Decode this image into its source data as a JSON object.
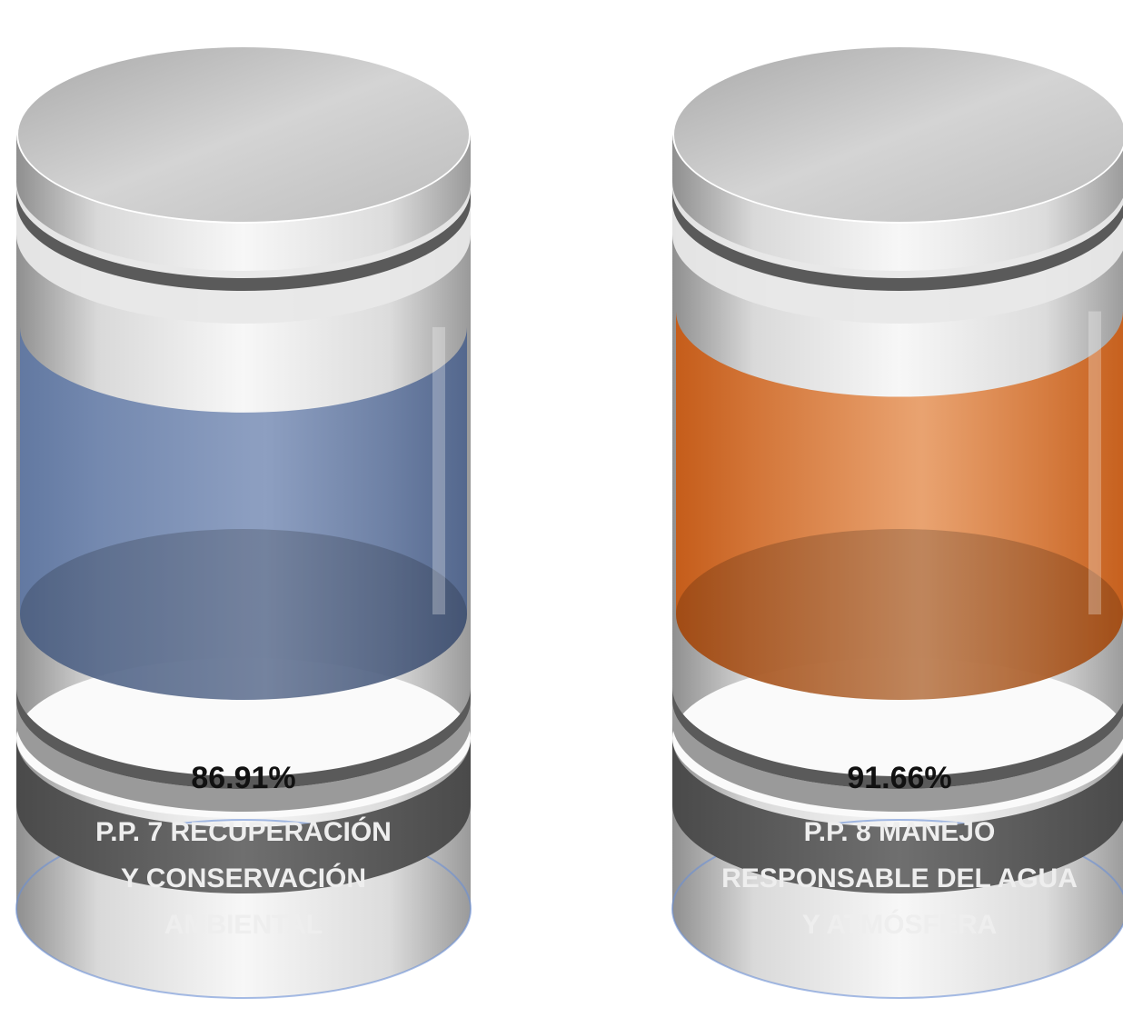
{
  "chart_data": {
    "type": "bar",
    "categories": [
      "P.P. 7 RECUPERACIÓN Y CONSERVACIÓN AMBIENTAL",
      "P.P. 8 MANEJO RESPONSABLE DEL AGUA Y ATMÓSFERA"
    ],
    "values": [
      86.91,
      91.66
    ],
    "value_labels": [
      "86.91%",
      "91.66%"
    ],
    "label_lines": [
      [
        "P.P. 7 RECUPERACIÓN",
        "Y CONSERVACIÓN",
        "AMBIENTAL"
      ],
      [
        "P.P. 8 MANEJO",
        "RESPONSABLE DEL AGUA",
        "Y ATMÓSFERA"
      ]
    ],
    "colors": [
      "#5d76a3",
      "#e0702a"
    ],
    "ylim": [
      0,
      100
    ],
    "grid": false,
    "legend": "none"
  }
}
